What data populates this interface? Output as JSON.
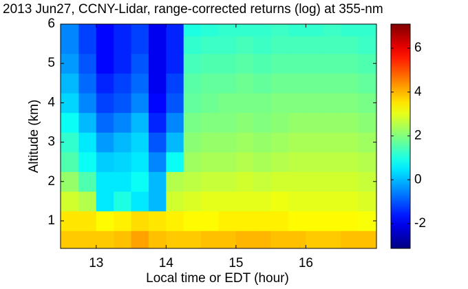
{
  "chart_data": {
    "type": "heatmap",
    "title": "2013 Jun27, CCNY-Lidar, range-corrected returns (log) at 355-nm",
    "x_label": "Local time or EDT (hour)",
    "y_label": "Altitude (km)",
    "colormap": "jet",
    "x": [
      12.625,
      12.875,
      13.125,
      13.375,
      13.625,
      13.875,
      14.125,
      14.375,
      14.625,
      14.875,
      15.125,
      15.375,
      15.625,
      15.875,
      16.125,
      16.375,
      16.625,
      16.875
    ],
    "y": [
      0.5,
      1.0,
      1.5,
      2.0,
      2.5,
      3.0,
      3.5,
      4.0,
      4.5,
      5.0,
      5.5,
      5.9
    ],
    "z": [
      [
        3.8,
        3.8,
        3.8,
        3.9,
        4.2,
        3.9,
        3.8,
        3.8,
        3.9,
        3.9,
        4.0,
        4.0,
        3.9,
        3.9,
        3.8,
        3.8,
        3.9,
        3.9
      ],
      [
        3.5,
        3.5,
        3.3,
        3.4,
        3.6,
        3.5,
        3.4,
        3.3,
        3.3,
        3.4,
        3.4,
        3.4,
        3.4,
        3.3,
        3.3,
        3.3,
        3.3,
        3.2
      ],
      [
        2.8,
        2.5,
        0.5,
        1.0,
        0.5,
        0.0,
        2.8,
        2.9,
        3.0,
        3.0,
        3.0,
        3.0,
        3.1,
        3.0,
        3.0,
        3.0,
        3.0,
        2.9
      ],
      [
        2.2,
        1.5,
        0.5,
        0.5,
        0.8,
        0.0,
        2.5,
        2.6,
        2.7,
        2.7,
        2.8,
        2.7,
        2.8,
        2.8,
        2.8,
        2.8,
        2.8,
        2.7
      ],
      [
        1.5,
        0.8,
        0.2,
        0.3,
        0.5,
        -0.5,
        0.8,
        2.3,
        2.4,
        2.4,
        2.5,
        2.4,
        2.5,
        2.6,
        2.6,
        2.6,
        2.6,
        2.5
      ],
      [
        1.2,
        0.5,
        -0.3,
        0.0,
        0.3,
        -1.0,
        0.0,
        2.1,
        2.2,
        2.2,
        2.3,
        2.2,
        2.3,
        2.4,
        2.4,
        2.4,
        2.4,
        2.3
      ],
      [
        0.8,
        0.0,
        -0.8,
        -0.5,
        0.0,
        -1.5,
        -0.5,
        1.9,
        2.0,
        2.0,
        2.1,
        2.0,
        2.1,
        2.2,
        2.2,
        2.2,
        2.2,
        2.1
      ],
      [
        0.3,
        -0.5,
        -1.2,
        -1.0,
        -0.5,
        -1.8,
        -1.0,
        1.7,
        1.8,
        1.9,
        1.9,
        1.9,
        2.0,
        2.0,
        2.0,
        2.0,
        2.0,
        1.9
      ],
      [
        0.0,
        -0.8,
        -1.5,
        -1.2,
        -0.8,
        -2.0,
        -1.2,
        1.6,
        1.7,
        1.7,
        1.8,
        1.7,
        1.8,
        1.8,
        1.8,
        1.8,
        1.8,
        1.7
      ],
      [
        -0.3,
        -1.0,
        -1.8,
        -1.5,
        -1.0,
        -2.0,
        -1.5,
        1.4,
        1.5,
        1.5,
        1.6,
        1.5,
        1.6,
        1.6,
        1.6,
        1.6,
        1.6,
        1.5
      ],
      [
        -0.5,
        -1.2,
        -1.8,
        -1.5,
        -1.2,
        -2.0,
        -1.5,
        1.2,
        1.3,
        1.3,
        1.4,
        1.3,
        1.4,
        1.4,
        1.4,
        1.4,
        1.4,
        1.3
      ],
      [
        -0.5,
        -1.2,
        -1.8,
        -1.5,
        -1.2,
        -2.0,
        -1.5,
        1.0,
        1.1,
        1.2,
        1.2,
        1.2,
        1.3,
        1.2,
        1.2,
        1.3,
        1.2,
        1.2
      ]
    ],
    "xlim": [
      12.49,
      17.01
    ],
    "xticks": [
      13,
      14,
      15,
      16
    ],
    "ylim": [
      0.3,
      6
    ],
    "yticks": [
      1,
      2,
      3,
      4,
      5,
      6
    ],
    "clim": [
      -3.13,
      7.1
    ],
    "cticks": [
      -2,
      0,
      2,
      4,
      6
    ]
  }
}
